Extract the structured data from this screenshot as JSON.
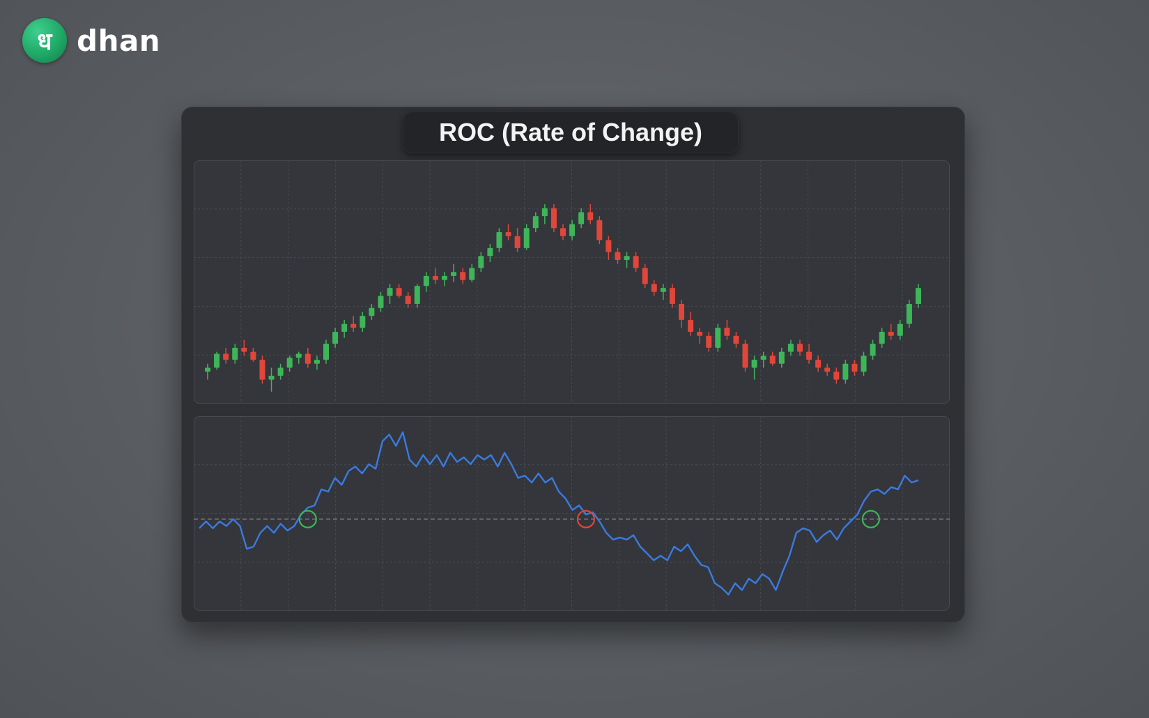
{
  "brand": {
    "name": "dhan",
    "logo_glyph": "ध"
  },
  "title": "ROC (Rate of Change)",
  "colors": {
    "up": "#3fb55a",
    "down": "#e0473a",
    "roc_line": "#3a7be0",
    "zero_line": "#bfc3c9",
    "cross_up": "#3fb55a",
    "cross_down": "#e0473a",
    "grid": "#464a50"
  },
  "chart_data": [
    {
      "type": "candlestick",
      "title": "",
      "xlabel": "",
      "ylabel": "",
      "grid": true,
      "ylim": [
        52,
        113
      ],
      "candles": [
        [
          60,
          62,
          58,
          61
        ],
        [
          61,
          65,
          60.5,
          64.5
        ],
        [
          64.5,
          66,
          62,
          63
        ],
        [
          63,
          67,
          62,
          66
        ],
        [
          66,
          68,
          64,
          65
        ],
        [
          65,
          66,
          62.5,
          63
        ],
        [
          63,
          64,
          57,
          58
        ],
        [
          58,
          61,
          55,
          59
        ],
        [
          59,
          62,
          58,
          61
        ],
        [
          61,
          64,
          60,
          63.5
        ],
        [
          63.5,
          65,
          62,
          64.5
        ],
        [
          64.5,
          66,
          61,
          62
        ],
        [
          62,
          64,
          60.5,
          63
        ],
        [
          63,
          68,
          62,
          67
        ],
        [
          67,
          71,
          66,
          70
        ],
        [
          70,
          73,
          68.5,
          72
        ],
        [
          72,
          74,
          70,
          71
        ],
        [
          71,
          75,
          70,
          74
        ],
        [
          74,
          77,
          73,
          76
        ],
        [
          76,
          80,
          75,
          79
        ],
        [
          79,
          82,
          77,
          81
        ],
        [
          81,
          82,
          78.5,
          79
        ],
        [
          79,
          80,
          76,
          77
        ],
        [
          77,
          82,
          76,
          81.5
        ],
        [
          81.5,
          85,
          80,
          84
        ],
        [
          84,
          86,
          82,
          83
        ],
        [
          83,
          85,
          81.5,
          84
        ],
        [
          84,
          87,
          82.5,
          85
        ],
        [
          85,
          86,
          82,
          83
        ],
        [
          83,
          87,
          82.5,
          86
        ],
        [
          86,
          90,
          85,
          89
        ],
        [
          89,
          92,
          87.5,
          91
        ],
        [
          91,
          96,
          90,
          95
        ],
        [
          95,
          97,
          93,
          94
        ],
        [
          94,
          96,
          90,
          91
        ],
        [
          91,
          97,
          90.5,
          96
        ],
        [
          96,
          100,
          95,
          99
        ],
        [
          99,
          102,
          97,
          101
        ],
        [
          101,
          102,
          95,
          96
        ],
        [
          96,
          97,
          93,
          94
        ],
        [
          94,
          98,
          93,
          97
        ],
        [
          97,
          101,
          96,
          100
        ],
        [
          100,
          102,
          97,
          98
        ],
        [
          98,
          99,
          92,
          93
        ],
        [
          93,
          94,
          88,
          90
        ],
        [
          90,
          91,
          87,
          88
        ],
        [
          88,
          90,
          86,
          89
        ],
        [
          89,
          90,
          85,
          86
        ],
        [
          86,
          87,
          81,
          82
        ],
        [
          82,
          83,
          79,
          80
        ],
        [
          80,
          82,
          78,
          81
        ],
        [
          81,
          82,
          76,
          77
        ],
        [
          77,
          78,
          71,
          73
        ],
        [
          73,
          75,
          69,
          70
        ],
        [
          70,
          71,
          67,
          69
        ],
        [
          69,
          70,
          65,
          66
        ],
        [
          66,
          72,
          65,
          71
        ],
        [
          71,
          73,
          68,
          69
        ],
        [
          69,
          70,
          66,
          67
        ],
        [
          67,
          68,
          60,
          61
        ],
        [
          61,
          64,
          58,
          63
        ],
        [
          63,
          65,
          61,
          64
        ],
        [
          64,
          65,
          61.5,
          62
        ],
        [
          62,
          66,
          61,
          65
        ],
        [
          65,
          68,
          64,
          67
        ],
        [
          67,
          68,
          64,
          65
        ],
        [
          65,
          67,
          62,
          63
        ],
        [
          63,
          64,
          60,
          61
        ],
        [
          61,
          62,
          59,
          60
        ],
        [
          60,
          61,
          57,
          58
        ],
        [
          58,
          63,
          57,
          62
        ],
        [
          62,
          63,
          59,
          60
        ],
        [
          60,
          65,
          59,
          64
        ],
        [
          64,
          68,
          63,
          67
        ],
        [
          67,
          71,
          66,
          70
        ],
        [
          70,
          72,
          68,
          69
        ],
        [
          69,
          73,
          68,
          72
        ],
        [
          72,
          78,
          71,
          77
        ],
        [
          77,
          82,
          76,
          81
        ]
      ]
    },
    {
      "type": "line",
      "title": "",
      "xlabel": "",
      "ylabel": "",
      "grid": true,
      "zero_line": 0,
      "ylim": [
        -40,
        45
      ],
      "series": [
        {
          "values": [
            -4,
            -1,
            -4,
            -1,
            -3,
            0,
            -3,
            -13,
            -12,
            -6,
            -3,
            -6,
            -2,
            -5,
            -3,
            2,
            5,
            6,
            13,
            12,
            18,
            15,
            21,
            23,
            20,
            24,
            22,
            34,
            37,
            32,
            38,
            26,
            23,
            28,
            24,
            28,
            23,
            29,
            25,
            27,
            24,
            28,
            26,
            28,
            23,
            29,
            24,
            18,
            19,
            16,
            20,
            16,
            18,
            12,
            9,
            4,
            6,
            2,
            3,
            -1,
            -6,
            -9,
            -8,
            -9,
            -7,
            -12,
            -15,
            -18,
            -16,
            -18,
            -12,
            -14,
            -11,
            -16,
            -20,
            -21,
            -28,
            -30,
            -33,
            -28,
            -31,
            -26,
            -28,
            -24,
            -26,
            -31,
            -23,
            -16,
            -6,
            -4,
            -5,
            -10,
            -7,
            -5,
            -9,
            -4,
            -1,
            2,
            8,
            12,
            13,
            11,
            14,
            13,
            19,
            16,
            17
          ]
        }
      ],
      "crossovers": [
        {
          "index": 16,
          "direction": "up"
        },
        {
          "index": 57,
          "direction": "down"
        },
        {
          "index": 99,
          "direction": "up"
        }
      ]
    }
  ]
}
